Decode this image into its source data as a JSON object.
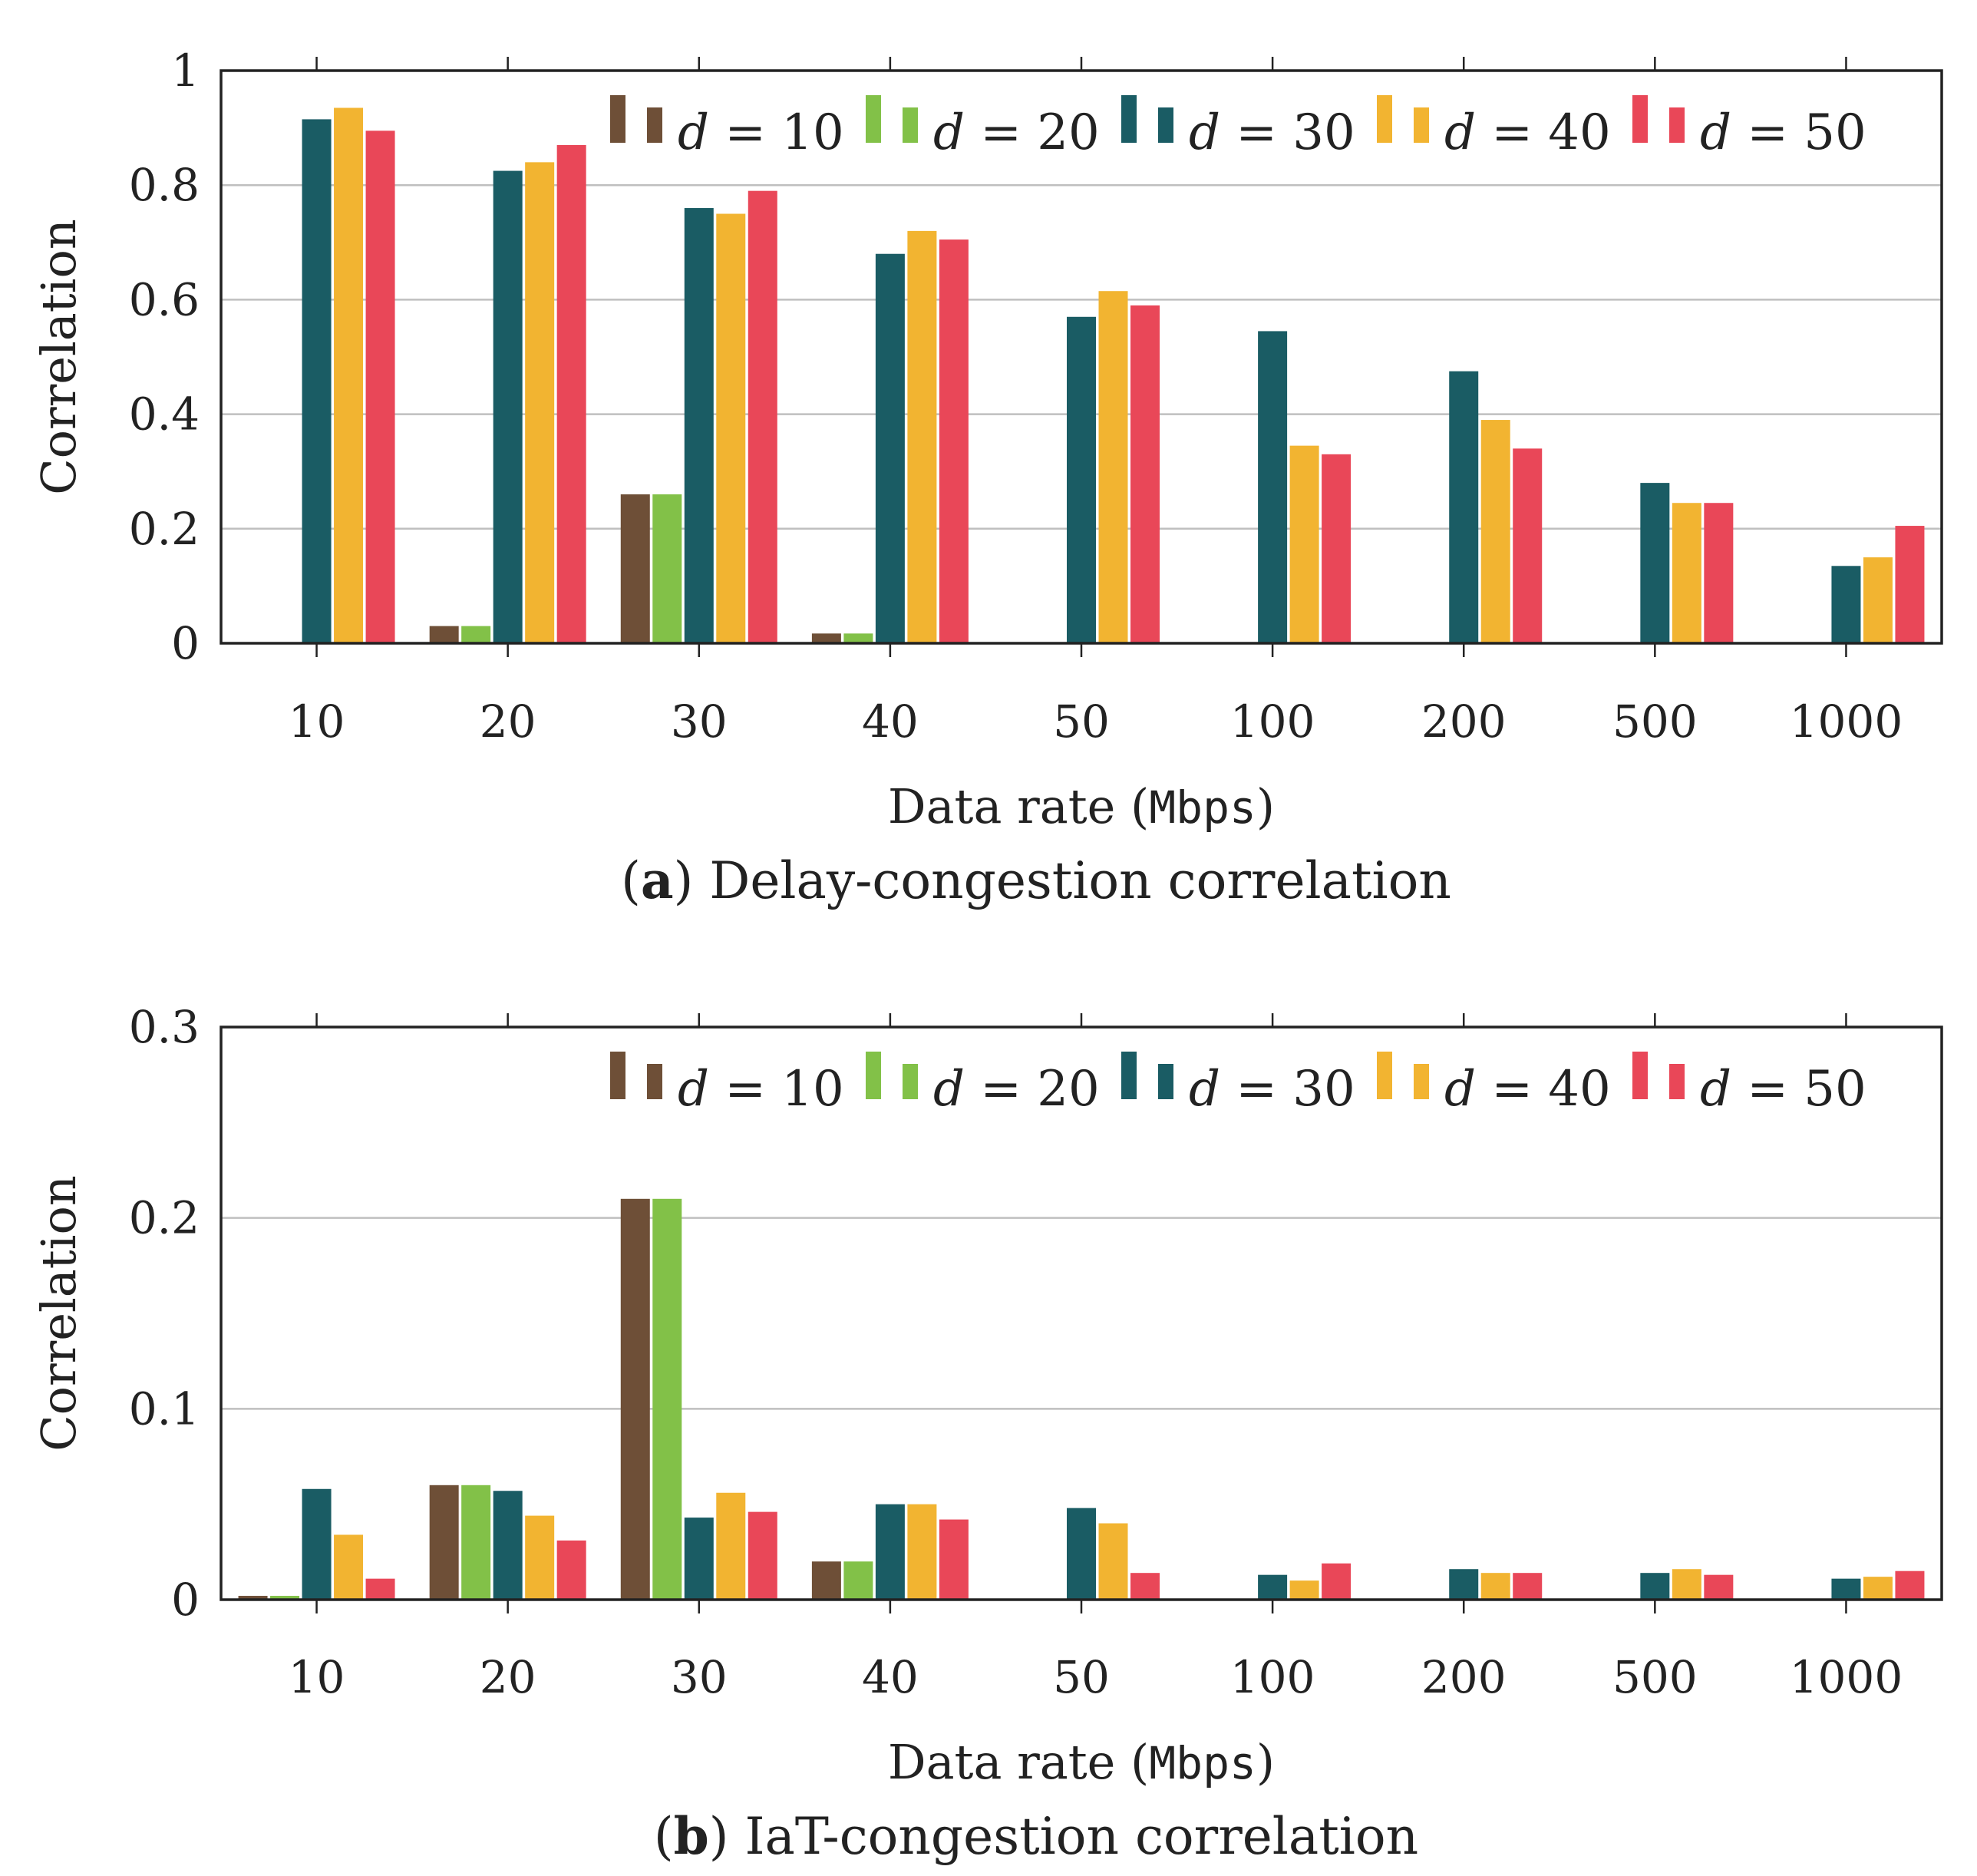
{
  "colors": {
    "d10": "#6e4f37",
    "d20": "#82c148",
    "d30": "#1a5c64",
    "d40": "#f2b431",
    "d50": "#e94758",
    "grid": "#bfbfbf",
    "axis": "#222222"
  },
  "legend": {
    "entries": [
      {
        "var": "d",
        "rel": " = ",
        "val": "10",
        "color": "d10"
      },
      {
        "var": "d",
        "rel": " = ",
        "val": "20",
        "color": "d20"
      },
      {
        "var": "d",
        "rel": " = ",
        "val": "30",
        "color": "d30"
      },
      {
        "var": "d",
        "rel": " = ",
        "val": "40",
        "color": "d40"
      },
      {
        "var": "d",
        "rel": " = ",
        "val": "50",
        "color": "d50"
      }
    ]
  },
  "chart_data": [
    {
      "type": "bar",
      "caption_letter": "a",
      "caption_text": " Delay-congestion correlation",
      "xlabel_prefix": "Data rate (",
      "xlabel_unit": "Mbps",
      "xlabel_suffix": ")",
      "ylabel": "Correlation",
      "ylim": [
        0,
        1
      ],
      "yticks": [
        0,
        0.2,
        0.4,
        0.6,
        0.8,
        1
      ],
      "ytick_labels": [
        "0",
        "0.2",
        "0.4",
        "0.6",
        "0.8",
        "1"
      ],
      "grid": true,
      "legend_position": "top-right",
      "categories": [
        "10",
        "20",
        "30",
        "40",
        "50",
        "100",
        "200",
        "500",
        "1000"
      ],
      "series": [
        {
          "name": "d = 10",
          "color": "d10",
          "values": [
            0,
            0.03,
            0.26,
            0.017,
            0,
            0,
            0,
            0,
            0
          ]
        },
        {
          "name": "d = 20",
          "color": "d20",
          "values": [
            0,
            0.03,
            0.26,
            0.017,
            0,
            0,
            0,
            0,
            0
          ]
        },
        {
          "name": "d = 30",
          "color": "d30",
          "values": [
            0.915,
            0.825,
            0.76,
            0.68,
            0.57,
            0.545,
            0.475,
            0.28,
            0.135
          ]
        },
        {
          "name": "d = 40",
          "color": "d40",
          "values": [
            0.935,
            0.84,
            0.75,
            0.72,
            0.615,
            0.345,
            0.39,
            0.245,
            0.15
          ]
        },
        {
          "name": "d = 50",
          "color": "d50",
          "values": [
            0.895,
            0.87,
            0.79,
            0.705,
            0.59,
            0.33,
            0.34,
            0.245,
            0.205
          ]
        }
      ]
    },
    {
      "type": "bar",
      "caption_letter": "b",
      "caption_text": " IaT-congestion correlation",
      "xlabel_prefix": "Data rate (",
      "xlabel_unit": "Mbps",
      "xlabel_suffix": ")",
      "ylabel": "Correlation",
      "ylim": [
        0,
        0.3
      ],
      "yticks": [
        0,
        0.1,
        0.2,
        0.3
      ],
      "ytick_labels": [
        "0",
        "0.1",
        "0.2",
        "0.3"
      ],
      "grid": true,
      "legend_position": "top-right",
      "categories": [
        "10",
        "20",
        "30",
        "40",
        "50",
        "100",
        "200",
        "500",
        "1000"
      ],
      "series": [
        {
          "name": "d = 10",
          "color": "d10",
          "values": [
            0.002,
            0.06,
            0.21,
            0.02,
            0,
            0,
            0,
            0,
            0
          ]
        },
        {
          "name": "d = 20",
          "color": "d20",
          "values": [
            0.002,
            0.06,
            0.21,
            0.02,
            0,
            0,
            0,
            0,
            0
          ]
        },
        {
          "name": "d = 30",
          "color": "d30",
          "values": [
            0.058,
            0.057,
            0.043,
            0.05,
            0.048,
            0.013,
            0.016,
            0.014,
            0.011
          ]
        },
        {
          "name": "d = 40",
          "color": "d40",
          "values": [
            0.034,
            0.044,
            0.056,
            0.05,
            0.04,
            0.01,
            0.014,
            0.016,
            0.012
          ]
        },
        {
          "name": "d = 50",
          "color": "d50",
          "values": [
            0.011,
            0.031,
            0.046,
            0.042,
            0.014,
            0.019,
            0.014,
            0.013,
            0.015
          ]
        }
      ]
    }
  ]
}
